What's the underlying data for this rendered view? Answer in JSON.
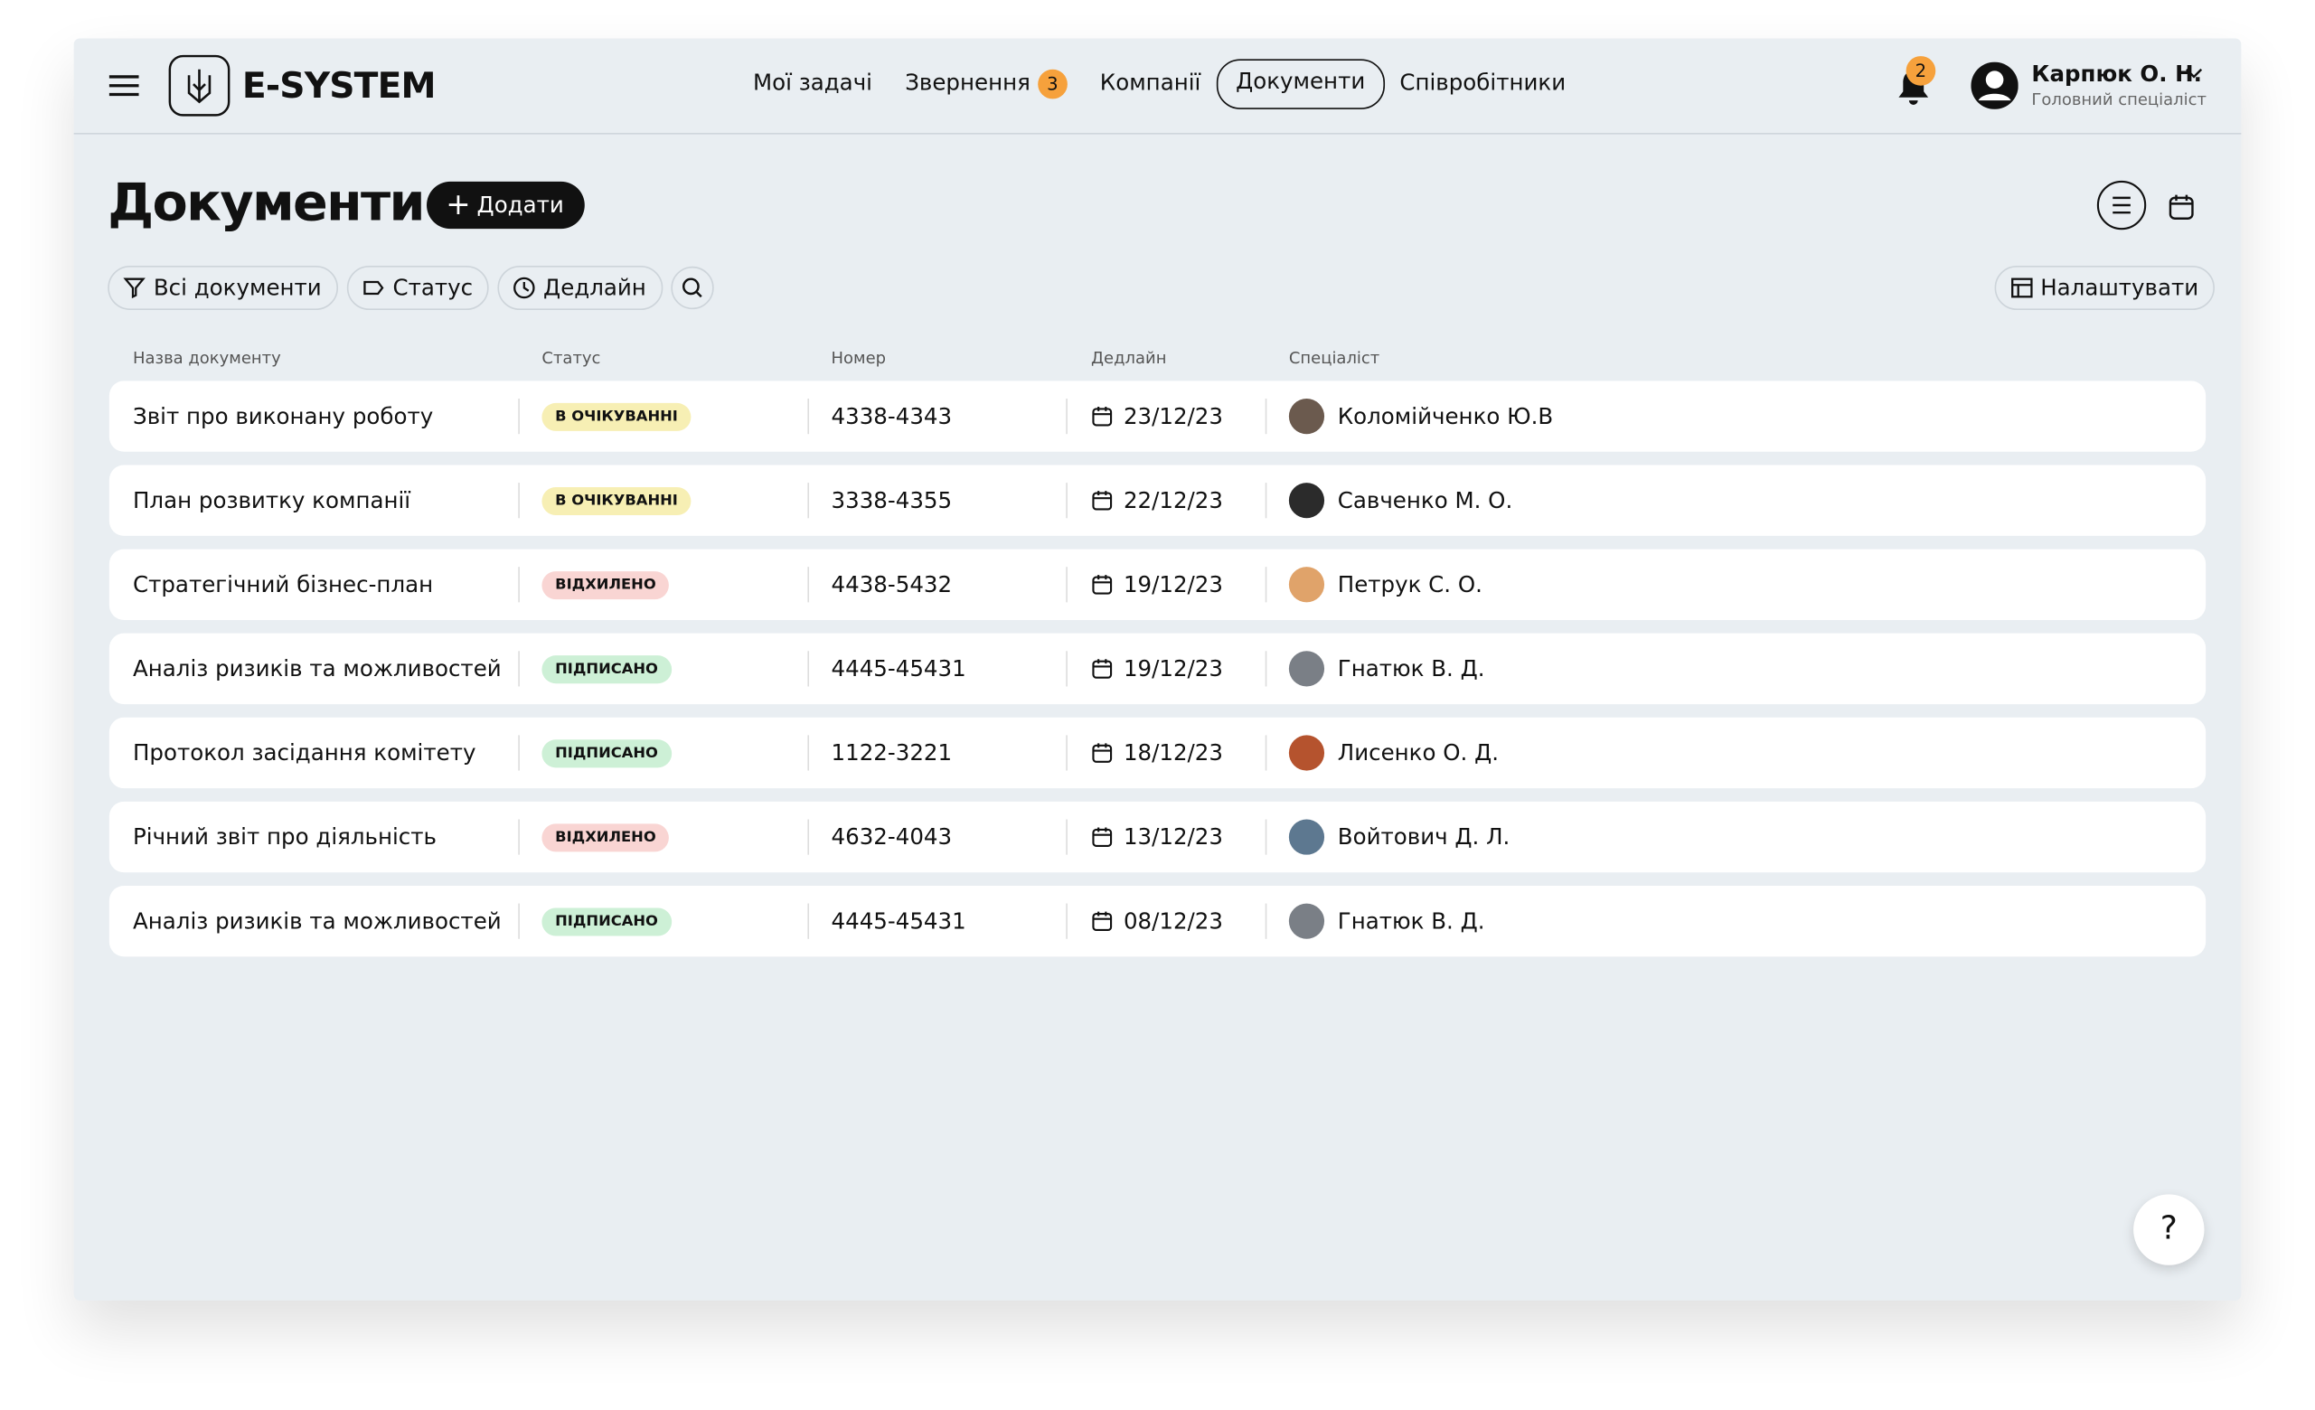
{
  "header": {
    "logo": "E-SYSTEM",
    "nav": [
      {
        "label": "Мої задачі"
      },
      {
        "label": "Звернення",
        "badge": "3"
      },
      {
        "label": "Компанії"
      },
      {
        "label": "Документи",
        "active": true
      },
      {
        "label": "Співробітники"
      }
    ],
    "notifications": "2",
    "user": {
      "name": "Карпюк О. Н.",
      "role": "Головний спеціаліст"
    }
  },
  "page": {
    "title": "Документи",
    "add_button": "Додати",
    "filters": [
      "Всі документи",
      "Статус",
      "Дедлайн"
    ],
    "settings_button": "Налаштувати",
    "help": "?"
  },
  "table": {
    "columns": [
      "Назва документу",
      "Статус",
      "Номер",
      "Дедлайн",
      "Спеціаліст"
    ],
    "rows": [
      {
        "name": "Звіт про виконану роботу",
        "status": "В ОЧІКУВАННІ",
        "status_color": "#f7efb4",
        "number": "4338-4343",
        "deadline": "23/12/23",
        "specialist": "Коломійченко Ю.В"
      },
      {
        "name": "План розвитку компанії",
        "status": "В ОЧІКУВАННІ",
        "status_color": "#f7efb4",
        "number": "3338-4355",
        "deadline": "22/12/23",
        "specialist": "Савченко М. О."
      },
      {
        "name": "Стратегічний бізнес-план",
        "status": "ВІДХИЛЕНО",
        "status_color": "#f9d5d3",
        "number": "4438-5432",
        "deadline": "19/12/23",
        "specialist": "Петрук С. О."
      },
      {
        "name": "Аналіз ризиків та можливостей",
        "status": "ПІДПИСАНО",
        "status_color": "#cdf0d6",
        "number": "4445-45431",
        "deadline": "19/12/23",
        "specialist": "Гнатюк В. Д."
      },
      {
        "name": "Протокол засідання комітету",
        "status": "ПІДПИСАНО",
        "status_color": "#cdf0d6",
        "number": "1122-3221",
        "deadline": "18/12/23",
        "specialist": "Лисенко О. Д."
      },
      {
        "name": "Річний звіт про діяльність",
        "status": "ВІДХИЛЕНО",
        "status_color": "#f9d5d3",
        "number": "4632-4043",
        "deadline": "13/12/23",
        "specialist": "Войтович Д. Л."
      },
      {
        "name": "Аналіз ризиків та можливостей",
        "status": "ПІДПИСАНО",
        "status_color": "#cdf0d6",
        "number": "4445-45431",
        "deadline": "08/12/23",
        "specialist": "Гнатюк В. Д."
      }
    ]
  }
}
